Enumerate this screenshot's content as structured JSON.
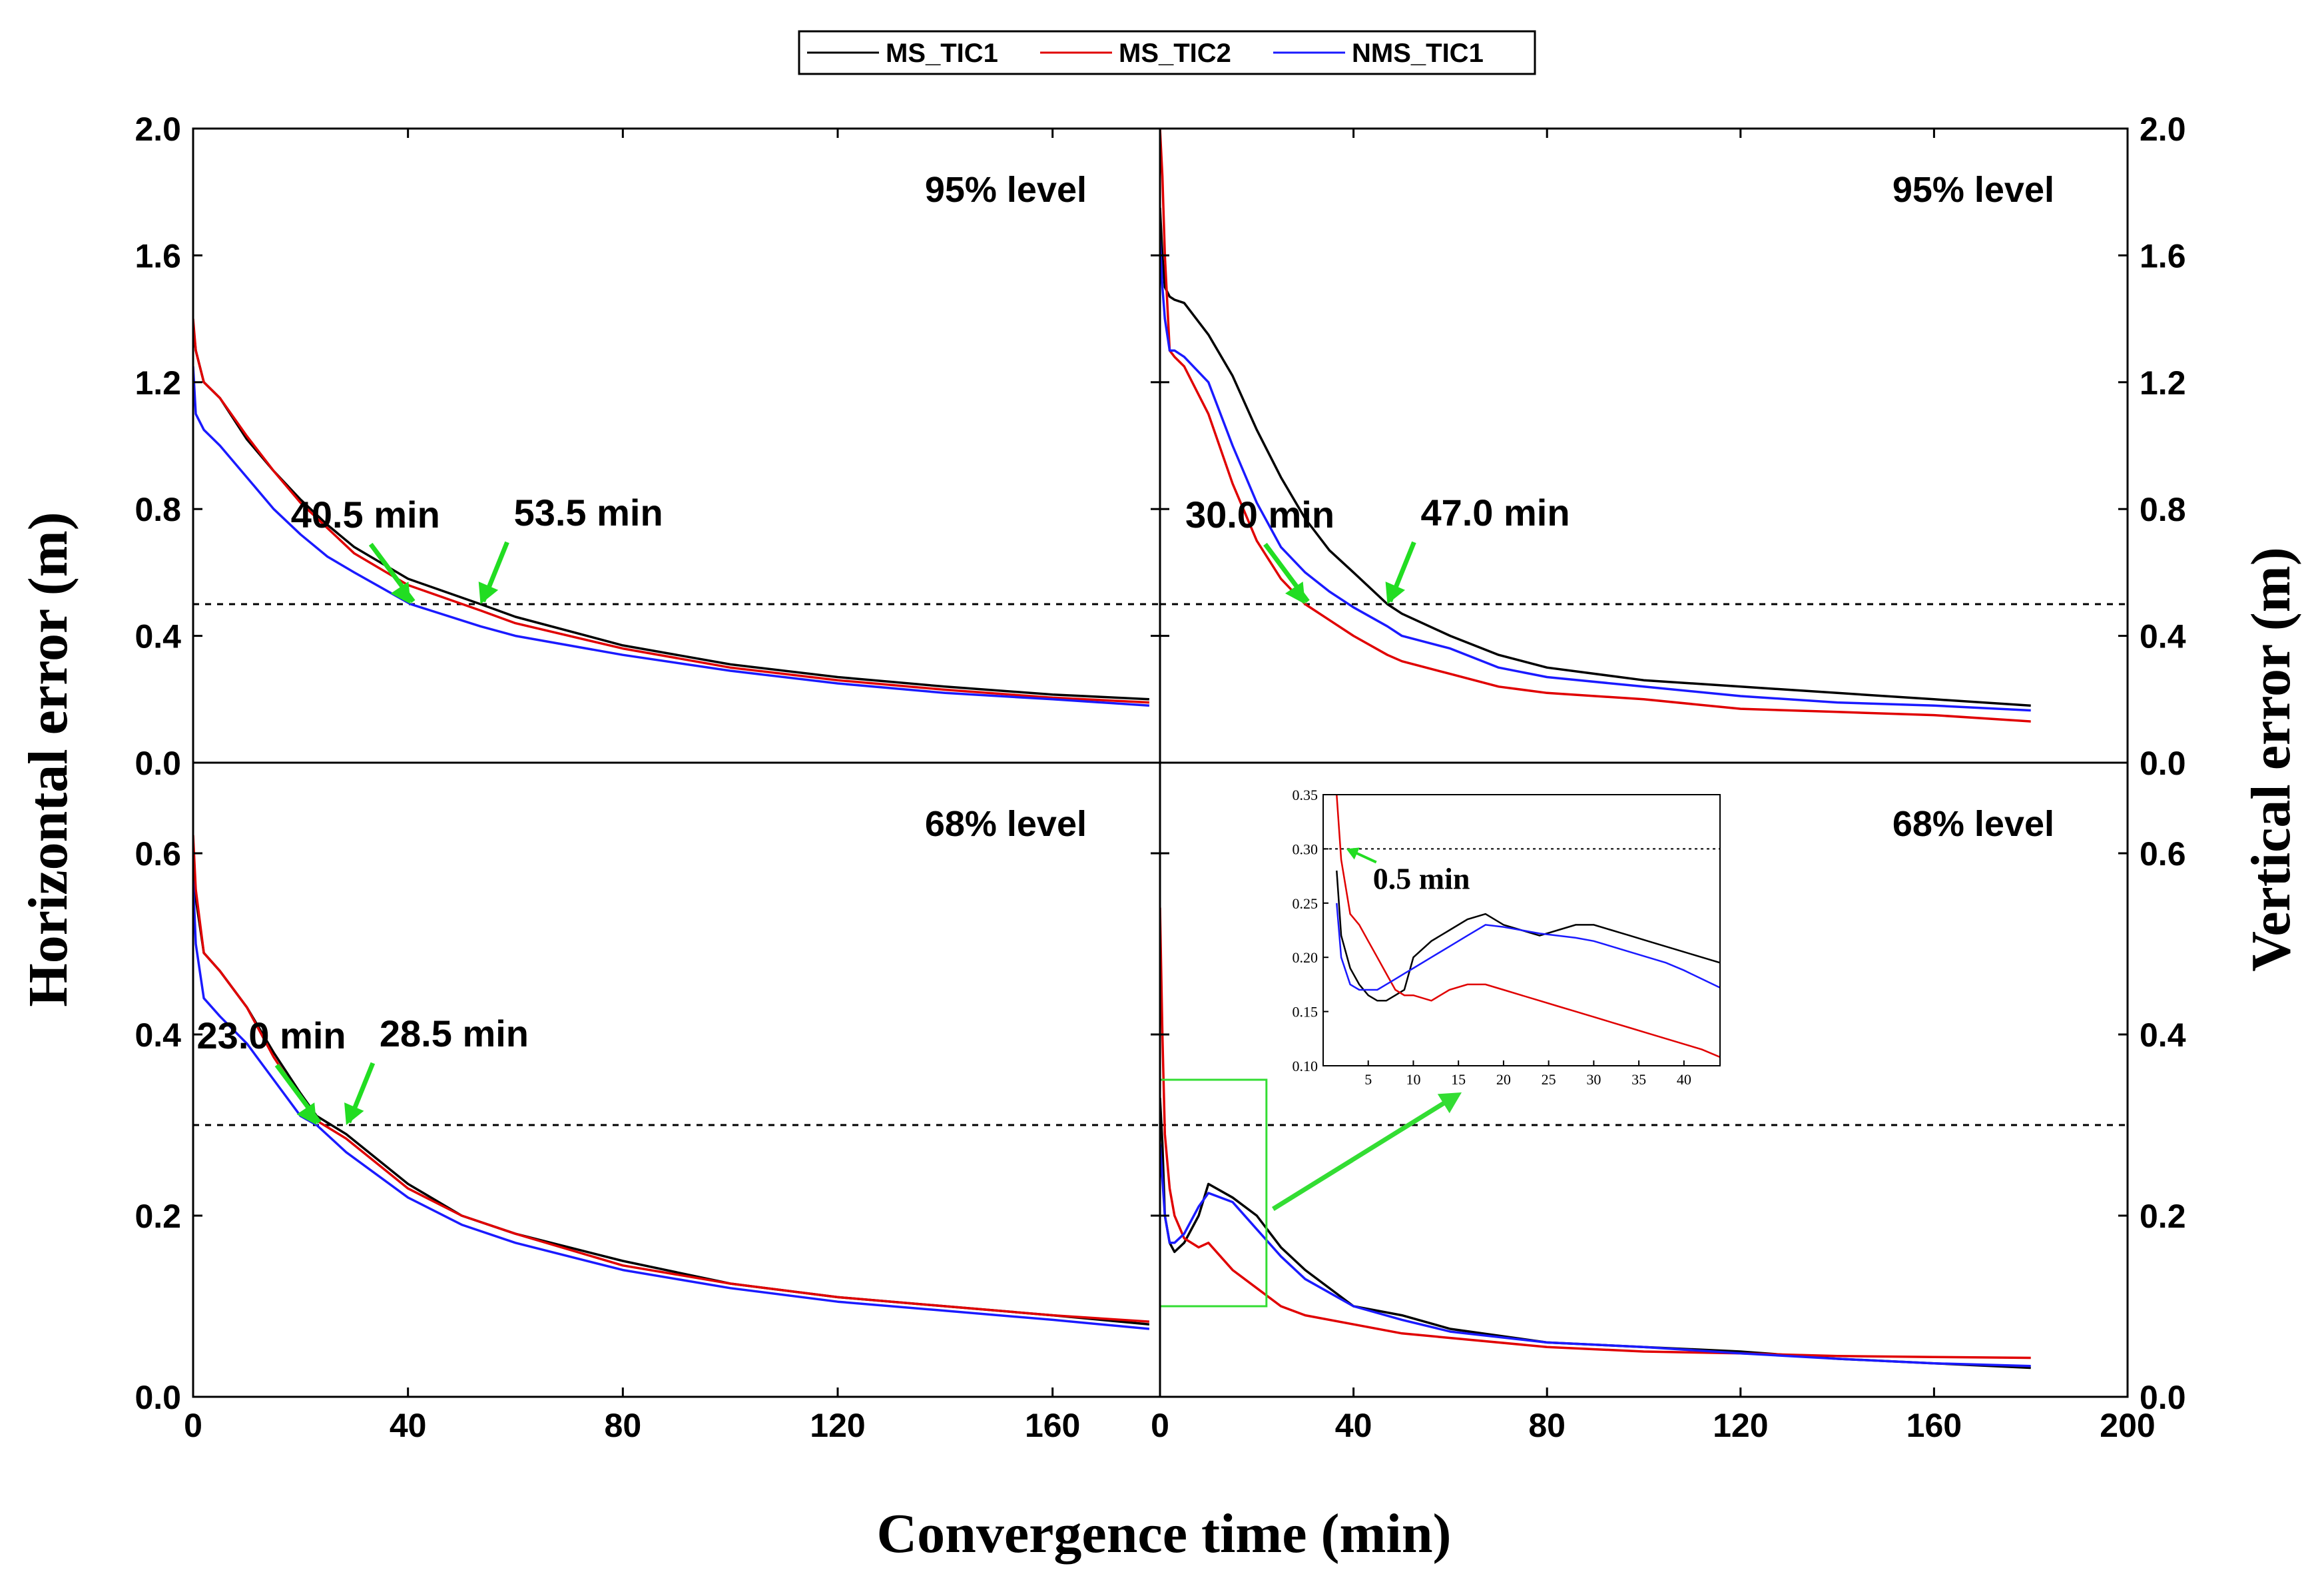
{
  "chart_data": {
    "type": "line",
    "xlabel": "Convergence time (min)",
    "ylabel_left": "Horizontal error (m)",
    "ylabel_right": "Vertical error (m)",
    "legend": {
      "placement": "top-center",
      "entries": [
        {
          "name": "MS_TIC1",
          "color": "#000000"
        },
        {
          "name": "MS_TIC2",
          "color": "#e00000"
        },
        {
          "name": "NMS_TIC1",
          "color": "#1a1aff"
        }
      ]
    },
    "x_ticks_left": [
      "0",
      "40",
      "80",
      "120",
      "160"
    ],
    "x_ticks_right": [
      "0",
      "40",
      "80",
      "120",
      "160",
      "200"
    ],
    "y_ticks_top": [
      "0.0",
      "0.4",
      "0.8",
      "1.2",
      "1.6",
      "2.0"
    ],
    "y_ticks_bottom": [
      "0.0",
      "0.2",
      "0.4",
      "0.6"
    ],
    "panels": [
      {
        "id": "horizontal-95",
        "label": "95%  level",
        "xlim": [
          0,
          180
        ],
        "ylim": [
          0,
          2.0
        ],
        "threshold": 0.5,
        "annotations": [
          {
            "text": "40.5  min",
            "at": [
              40.5,
              0.5
            ],
            "color": "#22dd22"
          },
          {
            "text": "53.5  min",
            "at": [
              53.5,
              0.5
            ],
            "color": "#22dd22"
          }
        ],
        "series": [
          {
            "name": "MS_TIC1",
            "x": [
              0,
              0.5,
              2,
              5,
              10,
              15,
              20,
              25,
              30,
              40,
              53.5,
              60,
              80,
              100,
              120,
              140,
              160,
              178
            ],
            "y": [
              1.38,
              1.3,
              1.2,
              1.15,
              1.02,
              0.92,
              0.83,
              0.75,
              0.68,
              0.58,
              0.5,
              0.46,
              0.37,
              0.31,
              0.27,
              0.24,
              0.215,
              0.2
            ]
          },
          {
            "name": "MS_TIC2",
            "x": [
              0,
              0.5,
              2,
              5,
              10,
              15,
              20,
              25,
              30,
              40,
              53.5,
              60,
              80,
              100,
              120,
              140,
              160,
              178
            ],
            "y": [
              1.4,
              1.3,
              1.2,
              1.15,
              1.03,
              0.92,
              0.82,
              0.74,
              0.66,
              0.56,
              0.48,
              0.44,
              0.36,
              0.3,
              0.26,
              0.23,
              0.205,
              0.19
            ]
          },
          {
            "name": "NMS_TIC1",
            "x": [
              0,
              0.5,
              2,
              5,
              10,
              15,
              20,
              25,
              30,
              40.5,
              53.5,
              60,
              80,
              100,
              120,
              140,
              160,
              178
            ],
            "y": [
              1.25,
              1.1,
              1.05,
              1.0,
              0.9,
              0.8,
              0.72,
              0.65,
              0.6,
              0.5,
              0.43,
              0.4,
              0.34,
              0.29,
              0.25,
              0.22,
              0.2,
              0.18
            ]
          }
        ]
      },
      {
        "id": "vertical-95",
        "label": "95%  level",
        "xlim": [
          0,
          200
        ],
        "ylim": [
          0,
          2.0
        ],
        "threshold": 0.5,
        "annotations": [
          {
            "text": "30.0  min",
            "at": [
              30.0,
              0.5
            ],
            "color": "#22dd22"
          },
          {
            "text": "47.0  min",
            "at": [
              47.0,
              0.5
            ],
            "color": "#22dd22"
          }
        ],
        "series": [
          {
            "name": "MS_TIC1",
            "x": [
              0,
              0.5,
              1,
              2,
              3,
              5,
              10,
              15,
              20,
              25,
              30,
              35,
              40,
              47,
              50,
              60,
              70,
              80,
              100,
              120,
              140,
              160,
              180
            ],
            "y": [
              1.75,
              1.6,
              1.5,
              1.47,
              1.46,
              1.45,
              1.35,
              1.22,
              1.05,
              0.9,
              0.77,
              0.67,
              0.6,
              0.5,
              0.47,
              0.4,
              0.34,
              0.3,
              0.26,
              0.24,
              0.22,
              0.2,
              0.18
            ]
          },
          {
            "name": "MS_TIC2",
            "x": [
              0,
              0.5,
              1,
              2,
              3,
              5,
              10,
              15,
              20,
              25,
              30,
              35,
              40,
              47,
              50,
              60,
              70,
              80,
              100,
              120,
              140,
              160,
              180
            ],
            "y": [
              2.0,
              1.85,
              1.6,
              1.3,
              1.28,
              1.25,
              1.1,
              0.88,
              0.7,
              0.58,
              0.5,
              0.45,
              0.4,
              0.34,
              0.32,
              0.28,
              0.24,
              0.22,
              0.2,
              0.17,
              0.16,
              0.15,
              0.13
            ]
          },
          {
            "name": "NMS_TIC1",
            "x": [
              0,
              0.5,
              1,
              2,
              3,
              5,
              10,
              15,
              20,
              25,
              30,
              35,
              40,
              47,
              50,
              60,
              70,
              80,
              100,
              120,
              140,
              160,
              180
            ],
            "y": [
              1.65,
              1.5,
              1.4,
              1.3,
              1.3,
              1.28,
              1.2,
              1.0,
              0.82,
              0.68,
              0.6,
              0.54,
              0.49,
              0.43,
              0.4,
              0.36,
              0.3,
              0.27,
              0.24,
              0.21,
              0.19,
              0.18,
              0.165
            ]
          }
        ]
      },
      {
        "id": "horizontal-68",
        "label": "68%  level",
        "xlim": [
          0,
          180
        ],
        "ylim": [
          0,
          0.7
        ],
        "threshold": 0.3,
        "annotations": [
          {
            "text": "23.0  min",
            "at": [
              23.0,
              0.3
            ],
            "color": "#22dd22"
          },
          {
            "text": "28.5  min",
            "at": [
              28.5,
              0.3
            ],
            "color": "#22dd22"
          }
        ],
        "series": [
          {
            "name": "MS_TIC1",
            "x": [
              0,
              0.5,
              2,
              5,
              10,
              15,
              20,
              23,
              28.5,
              40,
              50,
              60,
              80,
              100,
              120,
              140,
              160,
              178
            ],
            "y": [
              0.6,
              0.55,
              0.49,
              0.47,
              0.43,
              0.38,
              0.335,
              0.31,
              0.29,
              0.235,
              0.2,
              0.18,
              0.15,
              0.125,
              0.11,
              0.1,
              0.09,
              0.08
            ]
          },
          {
            "name": "MS_TIC2",
            "x": [
              0,
              0.5,
              2,
              5,
              10,
              15,
              20,
              23,
              28.5,
              40,
              50,
              60,
              80,
              100,
              120,
              140,
              160,
              178
            ],
            "y": [
              0.62,
              0.56,
              0.49,
              0.47,
              0.43,
              0.375,
              0.33,
              0.305,
              0.285,
              0.23,
              0.2,
              0.18,
              0.145,
              0.125,
              0.11,
              0.1,
              0.09,
              0.083
            ]
          },
          {
            "name": "NMS_TIC1",
            "x": [
              0,
              0.5,
              2,
              5,
              10,
              15,
              20,
              23,
              28.5,
              40,
              50,
              60,
              80,
              100,
              120,
              140,
              160,
              178
            ],
            "y": [
              0.57,
              0.5,
              0.44,
              0.42,
              0.39,
              0.35,
              0.31,
              0.3,
              0.27,
              0.22,
              0.19,
              0.17,
              0.14,
              0.12,
              0.105,
              0.095,
              0.085,
              0.075
            ]
          }
        ]
      },
      {
        "id": "vertical-68",
        "label": "68%  level",
        "xlim": [
          0,
          200
        ],
        "ylim": [
          0,
          0.7
        ],
        "threshold": 0.3,
        "annotations": [],
        "series": [
          {
            "name": "MS_TIC1",
            "x": [
              0,
              0.5,
              1,
              2,
              3,
              5,
              8,
              10,
              15,
              20,
              25,
              30,
              40,
              50,
              60,
              80,
              100,
              120,
              140,
              160,
              180
            ],
            "y": [
              0.33,
              0.28,
              0.2,
              0.17,
              0.16,
              0.17,
              0.2,
              0.235,
              0.22,
              0.2,
              0.165,
              0.14,
              0.1,
              0.09,
              0.075,
              0.06,
              0.055,
              0.05,
              0.042,
              0.037,
              0.032
            ]
          },
          {
            "name": "MS_TIC2",
            "x": [
              0,
              0.5,
              1,
              2,
              3,
              5,
              8,
              10,
              15,
              20,
              25,
              30,
              40,
              50,
              60,
              80,
              100,
              120,
              140,
              160,
              180
            ],
            "y": [
              0.54,
              0.4,
              0.29,
              0.23,
              0.2,
              0.175,
              0.165,
              0.17,
              0.14,
              0.12,
              0.1,
              0.09,
              0.08,
              0.07,
              0.065,
              0.055,
              0.05,
              0.048,
              0.045,
              0.044,
              0.043
            ]
          },
          {
            "name": "NMS_TIC1",
            "x": [
              0,
              0.5,
              1,
              2,
              3,
              5,
              8,
              10,
              15,
              20,
              25,
              30,
              40,
              50,
              60,
              80,
              100,
              120,
              140,
              160,
              180
            ],
            "y": [
              0.28,
              0.24,
              0.2,
              0.17,
              0.17,
              0.18,
              0.21,
              0.225,
              0.215,
              0.185,
              0.155,
              0.13,
              0.1,
              0.085,
              0.072,
              0.06,
              0.055,
              0.048,
              0.042,
              0.037,
              0.034
            ]
          }
        ],
        "zoom_box": {
          "xlim": [
            0,
            22
          ],
          "ylim": [
            0.1,
            0.35
          ]
        },
        "inset": {
          "xlim": [
            0,
            44
          ],
          "ylim": [
            0.1,
            0.35
          ],
          "x_ticks": [
            "5",
            "10",
            "15",
            "20",
            "25",
            "30",
            "35",
            "40"
          ],
          "y_ticks": [
            "0.10",
            "0.15",
            "0.20",
            "0.25",
            "0.30",
            "0.35"
          ],
          "threshold": 0.3,
          "annotation": {
            "text": "0.5  min",
            "at": [
              0.5,
              0.3
            ],
            "color": "#22dd22"
          },
          "series": [
            {
              "name": "MS_TIC1",
              "x": [
                1.5,
                2,
                3,
                4,
                5,
                6,
                7,
                8,
                9,
                10,
                12,
                14,
                16,
                18,
                20,
                22,
                24,
                26,
                28,
                30,
                32,
                34,
                36,
                38,
                40,
                42,
                44
              ],
              "y": [
                0.28,
                0.22,
                0.19,
                0.175,
                0.165,
                0.16,
                0.16,
                0.165,
                0.17,
                0.2,
                0.215,
                0.225,
                0.235,
                0.24,
                0.23,
                0.225,
                0.22,
                0.225,
                0.23,
                0.23,
                0.225,
                0.22,
                0.215,
                0.21,
                0.205,
                0.2,
                0.195
              ]
            },
            {
              "name": "MS_TIC2",
              "x": [
                1.5,
                2,
                3,
                4,
                5,
                6,
                7,
                8,
                9,
                10,
                12,
                14,
                16,
                18,
                20,
                22,
                24,
                26,
                28,
                30,
                32,
                34,
                36,
                38,
                40,
                42,
                44
              ],
              "y": [
                0.35,
                0.29,
                0.24,
                0.23,
                0.215,
                0.2,
                0.185,
                0.17,
                0.165,
                0.165,
                0.16,
                0.17,
                0.175,
                0.175,
                0.17,
                0.165,
                0.16,
                0.155,
                0.15,
                0.145,
                0.14,
                0.135,
                0.13,
                0.125,
                0.12,
                0.115,
                0.108
              ]
            },
            {
              "name": "NMS_TIC1",
              "x": [
                1.5,
                2,
                3,
                4,
                5,
                6,
                7,
                8,
                9,
                10,
                12,
                14,
                16,
                18,
                20,
                22,
                24,
                26,
                28,
                30,
                32,
                34,
                36,
                38,
                40,
                42,
                44
              ],
              "y": [
                0.25,
                0.2,
                0.175,
                0.17,
                0.17,
                0.17,
                0.175,
                0.18,
                0.185,
                0.19,
                0.2,
                0.21,
                0.22,
                0.23,
                0.228,
                0.225,
                0.222,
                0.22,
                0.218,
                0.215,
                0.21,
                0.205,
                0.2,
                0.195,
                0.188,
                0.18,
                0.172
              ]
            }
          ]
        }
      }
    ]
  }
}
